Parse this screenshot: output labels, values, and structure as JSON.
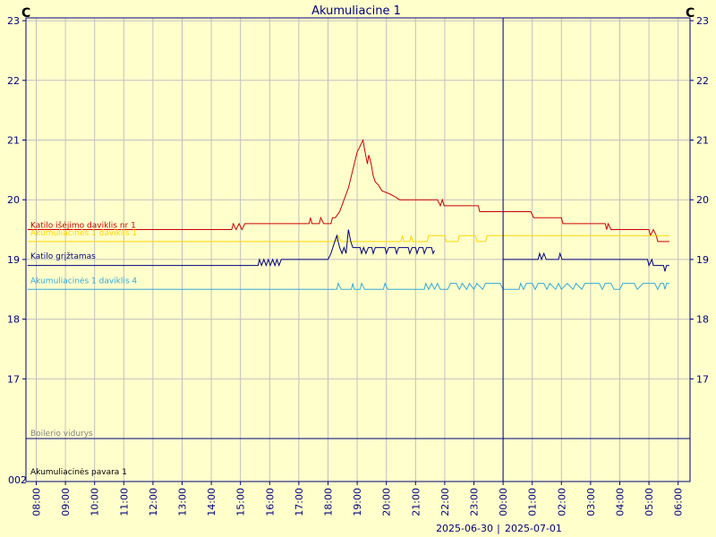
{
  "chart_data": {
    "type": "line",
    "title": "Akumuliacine 1",
    "y_unit_left": "C",
    "y_unit_right": "C",
    "ylim": [
      16,
      23
    ],
    "y_ticks": [
      17,
      18,
      19,
      20,
      21,
      22,
      23
    ],
    "grid": true,
    "x_ticks": [
      {
        "t": 0,
        "label": "08:00"
      },
      {
        "t": 1,
        "label": "09:00"
      },
      {
        "t": 2,
        "label": "10:00"
      },
      {
        "t": 3,
        "label": "11:00"
      },
      {
        "t": 4,
        "label": "12:00"
      },
      {
        "t": 5,
        "label": "13:00"
      },
      {
        "t": 6,
        "label": "14:00"
      },
      {
        "t": 7,
        "label": "15:00"
      },
      {
        "t": 8,
        "label": "16:00"
      },
      {
        "t": 9,
        "label": "17:00"
      },
      {
        "t": 10,
        "label": "18:00"
      },
      {
        "t": 11,
        "label": "19:00"
      },
      {
        "t": 12,
        "label": "20:00"
      },
      {
        "t": 13,
        "label": "21:00"
      },
      {
        "t": 14,
        "label": "22:00"
      },
      {
        "t": 15,
        "label": "23:00"
      },
      {
        "t": 16,
        "label": "00:00"
      },
      {
        "t": 17,
        "label": "01:00"
      },
      {
        "t": 18,
        "label": "02:00"
      },
      {
        "t": 19,
        "label": "03:00"
      },
      {
        "t": 20,
        "label": "04:00"
      },
      {
        "t": 21,
        "label": "05:00"
      },
      {
        "t": 22,
        "label": "06:00"
      }
    ],
    "date_left": "2025-06-30",
    "date_right": "2025-07-01",
    "date_divider": "|",
    "day_boundary_t": 16,
    "series": [
      {
        "name": "Katilo išėjimo daviklis nr 1",
        "color": "#cc0000",
        "points": [
          [
            -0.3,
            19.5
          ],
          [
            6.7,
            19.5
          ],
          [
            6.75,
            19.6
          ],
          [
            6.85,
            19.5
          ],
          [
            6.95,
            19.6
          ],
          [
            7.05,
            19.5
          ],
          [
            7.15,
            19.6
          ],
          [
            9.35,
            19.6
          ],
          [
            9.4,
            19.7
          ],
          [
            9.45,
            19.6
          ],
          [
            9.7,
            19.6
          ],
          [
            9.75,
            19.7
          ],
          [
            9.85,
            19.6
          ],
          [
            10.1,
            19.6
          ],
          [
            10.15,
            19.7
          ],
          [
            10.25,
            19.7
          ],
          [
            10.4,
            19.8
          ],
          [
            10.55,
            20.0
          ],
          [
            10.7,
            20.2
          ],
          [
            10.8,
            20.4
          ],
          [
            10.9,
            20.6
          ],
          [
            11.0,
            20.8
          ],
          [
            11.1,
            20.9
          ],
          [
            11.2,
            21.0
          ],
          [
            11.27,
            20.8
          ],
          [
            11.35,
            20.6
          ],
          [
            11.4,
            20.75
          ],
          [
            11.48,
            20.6
          ],
          [
            11.55,
            20.4
          ],
          [
            11.62,
            20.3
          ],
          [
            11.72,
            20.25
          ],
          [
            11.85,
            20.15
          ],
          [
            12.1,
            20.1
          ],
          [
            12.3,
            20.05
          ],
          [
            12.45,
            20.0
          ],
          [
            13.75,
            20.0
          ],
          [
            13.8,
            19.95
          ],
          [
            13.85,
            19.9
          ],
          [
            13.92,
            20.0
          ],
          [
            13.98,
            19.9
          ],
          [
            15.15,
            19.9
          ],
          [
            15.2,
            19.8
          ],
          [
            16.95,
            19.8
          ],
          [
            17.05,
            19.7
          ],
          [
            18.0,
            19.7
          ],
          [
            18.05,
            19.6
          ],
          [
            19.5,
            19.6
          ],
          [
            19.55,
            19.5
          ],
          [
            19.6,
            19.6
          ],
          [
            19.7,
            19.5
          ],
          [
            21.0,
            19.5
          ],
          [
            21.05,
            19.4
          ],
          [
            21.15,
            19.5
          ],
          [
            21.25,
            19.4
          ],
          [
            21.3,
            19.3
          ],
          [
            21.7,
            19.3
          ]
        ]
      },
      {
        "name": "Akumuliacinės 1 daviklis 1",
        "color": "#ffd700",
        "points": [
          [
            -0.3,
            19.3
          ],
          [
            10.3,
            19.3
          ],
          [
            10.35,
            19.4
          ],
          [
            10.45,
            19.3
          ],
          [
            12.5,
            19.3
          ],
          [
            12.55,
            19.4
          ],
          [
            12.6,
            19.3
          ],
          [
            12.8,
            19.3
          ],
          [
            12.85,
            19.4
          ],
          [
            12.9,
            19.3
          ],
          [
            13.4,
            19.3
          ],
          [
            13.45,
            19.4
          ],
          [
            14.0,
            19.4
          ],
          [
            14.05,
            19.3
          ],
          [
            14.45,
            19.3
          ],
          [
            14.5,
            19.4
          ],
          [
            15.05,
            19.4
          ],
          [
            15.1,
            19.3
          ],
          [
            15.4,
            19.3
          ],
          [
            15.45,
            19.4
          ],
          [
            21.7,
            19.4
          ]
        ]
      },
      {
        "name": "Katilo grįžtamas",
        "color": "#000080",
        "points": [
          [
            -0.3,
            18.9
          ],
          [
            7.6,
            18.9
          ],
          [
            7.65,
            19.0
          ],
          [
            7.72,
            18.9
          ],
          [
            7.8,
            19.0
          ],
          [
            7.88,
            18.9
          ],
          [
            7.95,
            19.0
          ],
          [
            8.02,
            18.9
          ],
          [
            8.1,
            19.0
          ],
          [
            8.18,
            18.9
          ],
          [
            8.25,
            19.0
          ],
          [
            8.32,
            18.9
          ],
          [
            8.4,
            19.0
          ],
          [
            10.0,
            19.0
          ],
          [
            10.1,
            19.1
          ],
          [
            10.2,
            19.25
          ],
          [
            10.3,
            19.4
          ],
          [
            10.4,
            19.2
          ],
          [
            10.48,
            19.1
          ],
          [
            10.55,
            19.2
          ],
          [
            10.62,
            19.1
          ],
          [
            10.7,
            19.5
          ],
          [
            10.78,
            19.3
          ],
          [
            10.85,
            19.2
          ],
          [
            11.1,
            19.2
          ],
          [
            11.15,
            19.1
          ],
          [
            11.22,
            19.2
          ],
          [
            11.3,
            19.1
          ],
          [
            11.38,
            19.2
          ],
          [
            11.5,
            19.2
          ],
          [
            11.55,
            19.1
          ],
          [
            11.62,
            19.2
          ],
          [
            11.95,
            19.2
          ],
          [
            12.0,
            19.1
          ],
          [
            12.08,
            19.2
          ],
          [
            12.3,
            19.2
          ],
          [
            12.35,
            19.1
          ],
          [
            12.42,
            19.2
          ],
          [
            12.75,
            19.2
          ],
          [
            12.8,
            19.1
          ],
          [
            12.88,
            19.2
          ],
          [
            13.0,
            19.2
          ],
          [
            13.05,
            19.1
          ],
          [
            13.12,
            19.2
          ],
          [
            13.25,
            19.2
          ],
          [
            13.3,
            19.1
          ],
          [
            13.38,
            19.2
          ],
          [
            13.55,
            19.2
          ],
          [
            13.6,
            19.1
          ],
          [
            13.65,
            19.15
          ],
          [
            null,
            null
          ],
          [
            16.0,
            19.0
          ],
          [
            17.2,
            19.0
          ],
          [
            17.25,
            19.1
          ],
          [
            17.32,
            19.0
          ],
          [
            17.4,
            19.1
          ],
          [
            17.48,
            19.0
          ],
          [
            17.6,
            19.0
          ],
          [
            17.68,
            19.0
          ],
          [
            17.9,
            19.0
          ],
          [
            17.95,
            19.1
          ],
          [
            18.02,
            19.0
          ],
          [
            18.1,
            19.0
          ],
          [
            20.95,
            19.0
          ],
          [
            21.0,
            18.9
          ],
          [
            21.1,
            19.0
          ],
          [
            21.15,
            18.9
          ],
          [
            21.5,
            18.9
          ],
          [
            21.55,
            18.8
          ],
          [
            21.6,
            18.9
          ],
          [
            21.7,
            18.9
          ]
        ]
      },
      {
        "name": "Akumuliacinės 1 daviklis 4",
        "color": "#33aadd",
        "points": [
          [
            -0.3,
            18.5
          ],
          [
            10.3,
            18.5
          ],
          [
            10.35,
            18.6
          ],
          [
            10.45,
            18.5
          ],
          [
            10.8,
            18.5
          ],
          [
            10.85,
            18.6
          ],
          [
            10.9,
            18.5
          ],
          [
            11.1,
            18.5
          ],
          [
            11.15,
            18.6
          ],
          [
            11.25,
            18.5
          ],
          [
            11.9,
            18.5
          ],
          [
            11.95,
            18.6
          ],
          [
            12.05,
            18.5
          ],
          [
            13.3,
            18.5
          ],
          [
            13.35,
            18.6
          ],
          [
            13.45,
            18.5
          ],
          [
            13.55,
            18.6
          ],
          [
            13.65,
            18.5
          ],
          [
            13.75,
            18.6
          ],
          [
            13.85,
            18.5
          ],
          [
            14.1,
            18.5
          ],
          [
            14.2,
            18.6
          ],
          [
            14.4,
            18.6
          ],
          [
            14.5,
            18.5
          ],
          [
            14.6,
            18.6
          ],
          [
            14.75,
            18.5
          ],
          [
            14.85,
            18.6
          ],
          [
            15.0,
            18.5
          ],
          [
            15.1,
            18.6
          ],
          [
            15.3,
            18.5
          ],
          [
            15.4,
            18.6
          ],
          [
            15.9,
            18.6
          ],
          [
            16.0,
            18.5
          ],
          [
            16.55,
            18.5
          ],
          [
            16.6,
            18.6
          ],
          [
            16.7,
            18.5
          ],
          [
            16.8,
            18.6
          ],
          [
            17.0,
            18.6
          ],
          [
            17.1,
            18.5
          ],
          [
            17.2,
            18.6
          ],
          [
            17.4,
            18.6
          ],
          [
            17.5,
            18.5
          ],
          [
            17.6,
            18.6
          ],
          [
            17.8,
            18.5
          ],
          [
            17.9,
            18.6
          ],
          [
            18.0,
            18.5
          ],
          [
            18.2,
            18.6
          ],
          [
            18.4,
            18.5
          ],
          [
            18.5,
            18.6
          ],
          [
            18.7,
            18.5
          ],
          [
            18.8,
            18.6
          ],
          [
            19.3,
            18.6
          ],
          [
            19.4,
            18.5
          ],
          [
            19.5,
            18.6
          ],
          [
            19.7,
            18.6
          ],
          [
            19.8,
            18.5
          ],
          [
            20.0,
            18.5
          ],
          [
            20.1,
            18.6
          ],
          [
            20.5,
            18.6
          ],
          [
            20.6,
            18.5
          ],
          [
            20.8,
            18.6
          ],
          [
            21.2,
            18.6
          ],
          [
            21.3,
            18.5
          ],
          [
            21.4,
            18.6
          ],
          [
            21.5,
            18.6
          ],
          [
            21.55,
            18.5
          ],
          [
            21.6,
            18.6
          ],
          [
            21.7,
            18.6
          ]
        ]
      }
    ],
    "overlay_labels": [
      {
        "text": "Katilo išėjimo daviklis nr 1",
        "color": "#cc0000",
        "at_value": 19.5
      },
      {
        "text": "Akumuliacinės 1 daviklis 1",
        "color": "#ffd700",
        "at_value": 19.37
      },
      {
        "text": "Katilo grįžtamas",
        "color": "#000080",
        "at_value": 18.98
      },
      {
        "text": "Akumuliacinės 1 daviklis 4",
        "color": "#33aadd",
        "at_value": 18.57
      },
      {
        "text": "Boilerio vidurys",
        "color": "#808080",
        "lane": "top"
      },
      {
        "text": "Akumuliacinės pavara 1",
        "color": "#000000",
        "lane": "bottom"
      }
    ],
    "lower_panel_y_label": "002",
    "colors": {
      "background": "#ffffcc",
      "grid": "#c0c0c0",
      "axis": "#000080",
      "axis_text": "#000080",
      "day_marker": "#000080"
    }
  }
}
